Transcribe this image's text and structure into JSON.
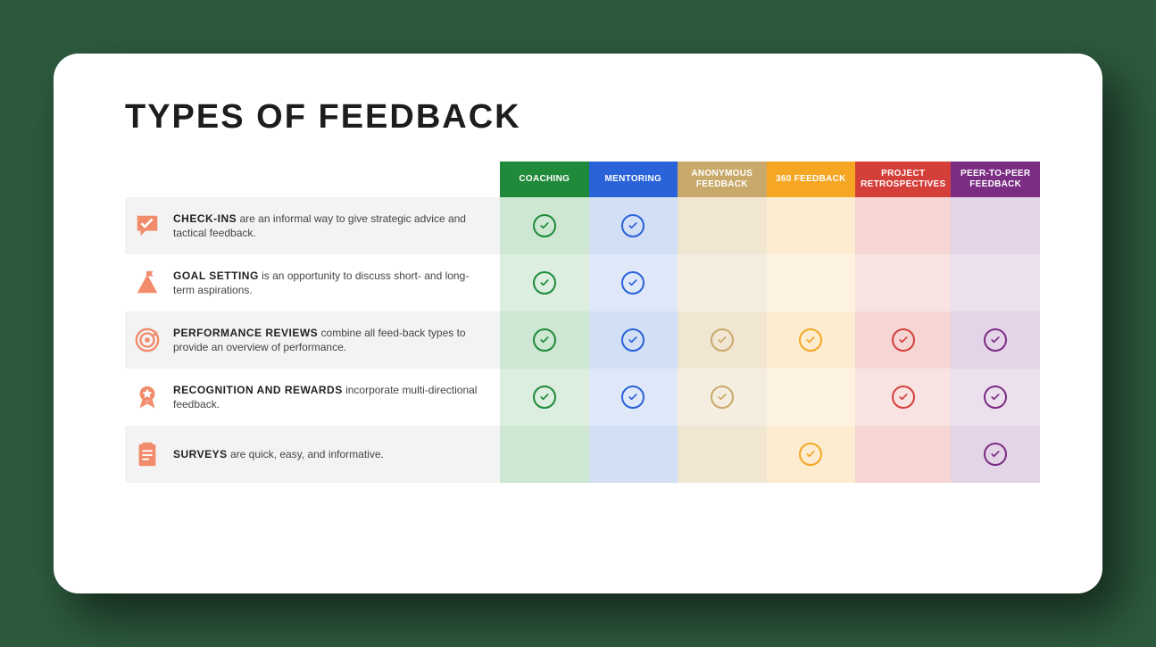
{
  "title": "TYPES OF FEEDBACK",
  "columns": [
    {
      "label": "COACHING",
      "header_bg": "#1f8a3a",
      "cell_bg": "#cde7d3",
      "cell_bg_alt": "#dbeee0",
      "check_color": "#1f8a3a"
    },
    {
      "label": "MENTORING",
      "header_bg": "#2962d9",
      "cell_bg": "#d2dff5",
      "cell_bg_alt": "#dfe8f8",
      "check_color": "#2962d9"
    },
    {
      "label": "ANONYMOUS FEEDBACK",
      "header_bg": "#c9a96a",
      "cell_bg": "#f0e6d2",
      "cell_bg_alt": "#f5eee0",
      "check_color": "#c9a96a"
    },
    {
      "label": "360 FEEDBACK",
      "header_bg": "#f5a623",
      "cell_bg": "#fdeccf",
      "cell_bg_alt": "#fef3e1",
      "check_color": "#f5a623"
    },
    {
      "label": "PROJECT RETROSPECTIVES",
      "header_bg": "#d43f3a",
      "cell_bg": "#f6d6d5",
      "cell_bg_alt": "#f9e3e2",
      "check_color": "#d43f3a"
    },
    {
      "label": "PEER-TO-PEER FEEDBACK",
      "header_bg": "#7a2d82",
      "cell_bg": "#e4d4e7",
      "cell_bg_alt": "#ece0ee",
      "check_color": "#7a2d82"
    }
  ],
  "rows": [
    {
      "label": "CHECK-INS",
      "description": " are an informal way to give strategic advice and tactical feedback.",
      "row_bg": "#f3f3f3",
      "icon": "speech-check",
      "checks": [
        true,
        true,
        false,
        false,
        false,
        false
      ]
    },
    {
      "label": "GOAL SETTING",
      "description": " is an opportunity to discuss short- and long-term aspirations.",
      "row_bg": "#ffffff",
      "icon": "mountain-flag",
      "checks": [
        true,
        true,
        false,
        false,
        false,
        false
      ]
    },
    {
      "label": "PERFORMANCE REVIEWS",
      "description": " combine all feed-back types to provide an overview of performance.",
      "row_bg": "#f3f3f3",
      "icon": "target",
      "checks": [
        true,
        true,
        true,
        true,
        true,
        true
      ]
    },
    {
      "label": "RECOGNITION AND REWARDS",
      "description": " incorporate multi-directional feedback.",
      "row_bg": "#ffffff",
      "icon": "ribbon-star",
      "checks": [
        true,
        true,
        true,
        false,
        true,
        true
      ]
    },
    {
      "label": "SURVEYS",
      "description": " are quick, easy, and informative.",
      "row_bg": "#f3f3f3",
      "icon": "clipboard",
      "checks": [
        false,
        false,
        false,
        true,
        false,
        true
      ]
    }
  ],
  "icon_color": "#f28b6b"
}
